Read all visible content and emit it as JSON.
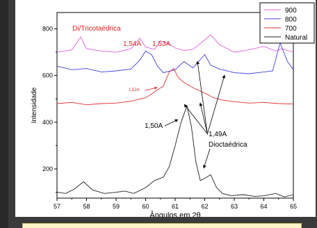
{
  "colors": {
    "background": "#3a3a3a",
    "figure": "#ffffff",
    "caption": "#fbf5c8",
    "annotation_red": "#e0231e",
    "annotation_black": "#000000"
  },
  "chart_data": {
    "type": "line",
    "xlabel": "Ângulos em 2θ",
    "ylabel": "Intensidade",
    "xlim": [
      57,
      65
    ],
    "ylim": [
      75,
      870
    ],
    "xticks": [
      "57",
      "58",
      "59",
      "60",
      "61",
      "62",
      "63",
      "64",
      "65"
    ],
    "yticks": [
      "200",
      "400",
      "600",
      "800"
    ],
    "xtick_values": [
      57,
      58,
      59,
      60,
      61,
      62,
      63,
      64,
      65
    ],
    "ytick_values": [
      200,
      400,
      600,
      800
    ],
    "legend_position": "top-right",
    "grid": false,
    "series": [
      {
        "name": "900",
        "color": "#e060e0",
        "x": [
          57,
          57.5,
          57.8,
          58,
          58.5,
          59,
          59.5,
          59.8,
          60,
          60.3,
          60.5,
          60.8,
          61,
          61.3,
          61.6,
          62,
          62.2,
          62.5,
          63,
          63.5,
          64,
          64.4,
          64.6,
          65
        ],
        "y": [
          700,
          710,
          765,
          715,
          705,
          700,
          715,
          760,
          722,
          712,
          748,
          735,
          718,
          708,
          712,
          752,
          775,
          732,
          700,
          710,
          725,
          705,
          715,
          700
        ]
      },
      {
        "name": "800",
        "color": "#4040e0",
        "x": [
          57,
          57.5,
          58,
          58.5,
          59,
          59.5,
          59.8,
          60,
          60.2,
          60.4,
          60.6,
          61,
          61.3,
          61.6,
          62,
          62.2,
          62.5,
          63,
          63.5,
          64,
          64.3,
          64.55,
          64.8,
          65
        ],
        "y": [
          640,
          625,
          630,
          615,
          620,
          628,
          665,
          705,
          690,
          640,
          612,
          625,
          660,
          633,
          690,
          645,
          628,
          612,
          608,
          615,
          620,
          740,
          660,
          625
        ]
      },
      {
        "name": "700",
        "color": "#e03030",
        "x": [
          57,
          57.5,
          58,
          58.5,
          59,
          59.5,
          60,
          60.3,
          60.6,
          60.8,
          60.95,
          61.1,
          61.3,
          61.6,
          62,
          62.3,
          62.6,
          63,
          63.5,
          64,
          64.5,
          65
        ],
        "y": [
          480,
          485,
          475,
          480,
          482,
          490,
          505,
          530,
          555,
          615,
          630,
          592,
          570,
          548,
          525,
          505,
          495,
          488,
          482,
          485,
          480,
          478
        ]
      },
      {
        "name": "Natural",
        "color": "#202020",
        "x": [
          57,
          57.3,
          57.6,
          57.9,
          58.2,
          58.6,
          59,
          59.3,
          59.6,
          60,
          60.3,
          60.6,
          60.8,
          61.0,
          61.2,
          61.4,
          61.55,
          61.7,
          61.85,
          62.0,
          62.2,
          62.4,
          62.6,
          62.9,
          63.3,
          63.7,
          64,
          64.4,
          64.7,
          65
        ],
        "y": [
          100,
          95,
          115,
          145,
          110,
          95,
          100,
          105,
          95,
          120,
          150,
          165,
          210,
          300,
          400,
          470,
          380,
          230,
          150,
          160,
          175,
          120,
          95,
          85,
          90,
          82,
          85,
          95,
          80,
          90
        ]
      }
    ],
    "annotations": [
      {
        "text": "Di/Tricotaédrica",
        "color": "#e0231e"
      },
      {
        "text": "1,54A",
        "color": "#e0231e"
      },
      {
        "text": "1,53A",
        "color": "#e0231e"
      },
      {
        "text": "1,52A",
        "color": "#e0231e"
      },
      {
        "text": "1,50A",
        "color": "#000000"
      },
      {
        "text": "1,49A",
        "color": "#000000"
      },
      {
        "text": "Dioctaédrica",
        "color": "#000000"
      }
    ]
  }
}
